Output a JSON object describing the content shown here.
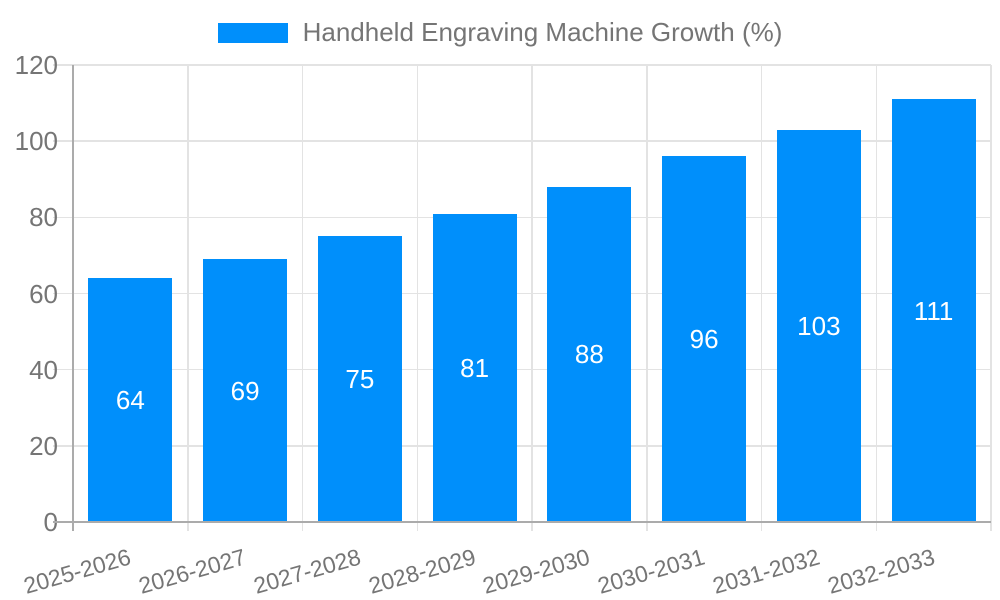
{
  "chart_data": {
    "type": "bar",
    "title": "Handheld Engraving Machine Growth (%)",
    "legend": [
      "Handheld Engraving Machine Growth (%)"
    ],
    "legend_position": "top",
    "categories": [
      "2025-2026",
      "2026-2027",
      "2027-2028",
      "2028-2029",
      "2029-2030",
      "2030-2031",
      "2031-2032",
      "2032-2033"
    ],
    "values": [
      64,
      69,
      75,
      81,
      88,
      96,
      103,
      111
    ],
    "xlabel": "",
    "ylabel": "",
    "ylim": [
      0,
      120
    ],
    "yticks": [
      0,
      20,
      40,
      60,
      80,
      100,
      120
    ],
    "grid": true,
    "bar_color": "#008ffb",
    "value_label_color": "#ffffff",
    "axis_color": "#ababab",
    "gridline_color": "#e3e3e3",
    "text_color": "#757575"
  }
}
